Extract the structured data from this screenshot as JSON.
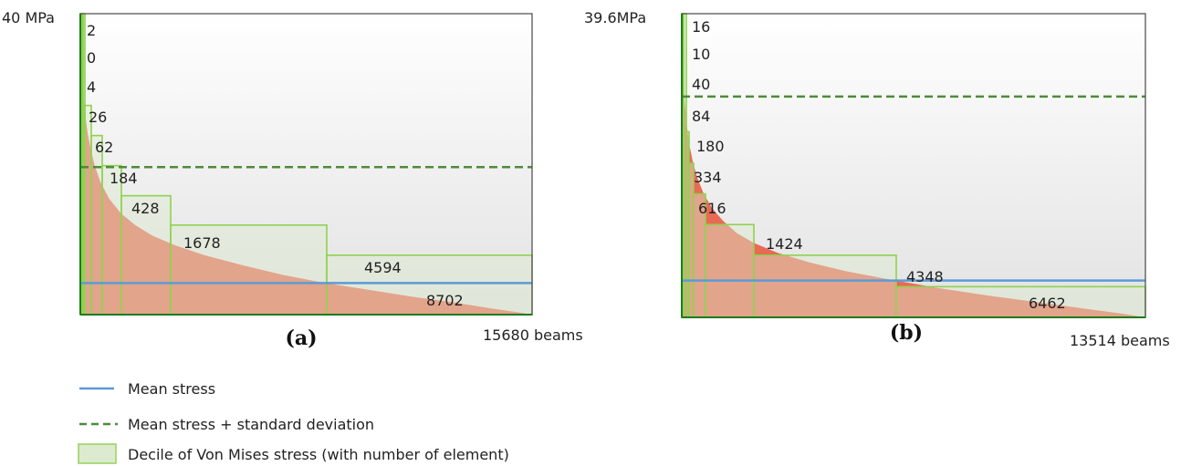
{
  "chart_data": [
    {
      "type": "area",
      "panel_label": "(a)",
      "y_top_label": "40 MPa",
      "x_end_label": "15680 beams",
      "x_total": 15680,
      "y_max": 40,
      "mean_stress": 4.2,
      "mean_plus_sd": 19.6,
      "curve": {
        "x": [
          0,
          40,
          80,
          120,
          180,
          260,
          360,
          500,
          700,
          1000,
          1400,
          1900,
          2500,
          3300,
          4300,
          5600,
          7000,
          8500,
          10000,
          11500,
          13000,
          14300,
          15200,
          15680
        ],
        "y": [
          40,
          33.6,
          30.6,
          28.6,
          26.2,
          24.0,
          22.0,
          19.8,
          17.6,
          15.4,
          13.5,
          11.9,
          10.5,
          9.2,
          7.9,
          6.6,
          5.3,
          4.2,
          3.3,
          2.4,
          1.6,
          0.8,
          0.3,
          0
        ]
      },
      "deciles": [
        {
          "count": "2",
          "count_value": 2,
          "upper": 40
        },
        {
          "count": "0",
          "count_value": 0,
          "upper": 40
        },
        {
          "count": "4",
          "count_value": 4,
          "upper": 40
        },
        {
          "count": "26",
          "count_value": 26,
          "upper": 27.8
        },
        {
          "count": "62",
          "count_value": 62,
          "upper": 23.8
        },
        {
          "count": "184",
          "count_value": 184,
          "upper": 19.8
        },
        {
          "count": "428",
          "count_value": 428,
          "upper": 15.8
        },
        {
          "count": "1678",
          "count_value": 1678,
          "upper": 11.9
        },
        {
          "count": "4594",
          "count_value": 4594,
          "upper": 7.9
        },
        {
          "count": "8702",
          "count_value": 8702,
          "upper": 4.0
        }
      ]
    },
    {
      "type": "area",
      "panel_label": "(b)",
      "y_top_label": "39.6MPa",
      "x_end_label": "13514 beams",
      "x_total": 13514,
      "y_max": 39.6,
      "mean_stress": 4.8,
      "mean_plus_sd": 28.8,
      "curve": {
        "x": [
          0,
          20,
          50,
          90,
          150,
          230,
          330,
          460,
          640,
          870,
          1200,
          1600,
          2100,
          2800,
          3700,
          4800,
          6100,
          7500,
          9000,
          10500,
          11800,
          12800,
          13300,
          13514
        ],
        "y": [
          39.6,
          34.0,
          30.5,
          27.8,
          24.9,
          22.3,
          20.1,
          18.1,
          16.1,
          14.3,
          12.6,
          11.0,
          9.7,
          8.4,
          7.2,
          6.0,
          4.9,
          3.8,
          2.8,
          1.9,
          1.1,
          0.5,
          0.15,
          0
        ]
      },
      "deciles": [
        {
          "count": "16",
          "count_value": 16,
          "upper": 39.6
        },
        {
          "count": "10",
          "count_value": 10,
          "upper": 39.6
        },
        {
          "count": "40",
          "count_value": 40,
          "upper": 39.6
        },
        {
          "count": "84",
          "count_value": 84,
          "upper": 24.2
        },
        {
          "count": "180",
          "count_value": 180,
          "upper": 20.1
        },
        {
          "count": "334",
          "count_value": 334,
          "upper": 16.1
        },
        {
          "count": "616",
          "count_value": 616,
          "upper": 12.1
        },
        {
          "count": "1424",
          "count_value": 1424,
          "upper": 8.1
        },
        {
          "count": "4348",
          "count_value": 4348,
          "upper": 4.0
        },
        {
          "count": "6462",
          "count_value": 6462,
          "upper": 4.0
        }
      ]
    }
  ],
  "legend": {
    "items": [
      {
        "label": "Mean stress",
        "kind": "line",
        "color": "#5b9bd5"
      },
      {
        "label": "Mean stress + standard deviation",
        "kind": "dashed",
        "color": "#4e8a3a"
      },
      {
        "label": "Decile of Von Mises stress (with number of element)",
        "kind": "box",
        "color": "#9ad05a"
      }
    ]
  },
  "colors": {
    "area": "#e86a55",
    "decile_stroke": "#8fd14f",
    "decile_fill": "#dcebcf",
    "mean": "#5b9bd5",
    "mean_sd": "#4e8a3a",
    "frame": "#555555"
  }
}
